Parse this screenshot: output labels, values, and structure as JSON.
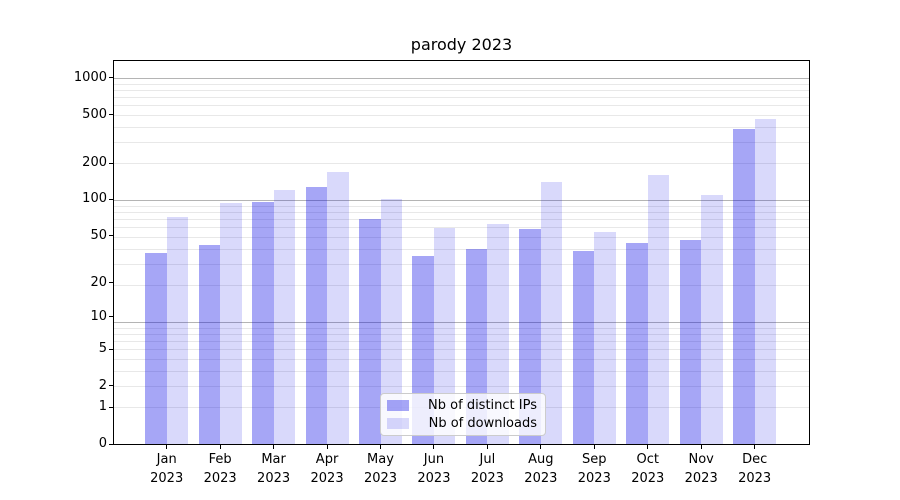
{
  "chart_data": {
    "type": "bar",
    "title": "parody 2023",
    "x_year": "2023",
    "categories": [
      "Jan",
      "Feb",
      "Mar",
      "Apr",
      "May",
      "Jun",
      "Jul",
      "Aug",
      "Sep",
      "Oct",
      "Nov",
      "Dec"
    ],
    "series": [
      {
        "name": "Nb of distinct IPs",
        "color": "rgba(0,0,230,0.35)",
        "values": [
          36,
          42,
          96,
          128,
          69,
          34,
          39,
          57,
          37,
          43,
          46,
          380
        ]
      },
      {
        "name": "Nb of downloads",
        "color": "rgba(0,0,230,0.15)",
        "values": [
          72,
          93,
          120,
          170,
          100,
          58,
          62,
          140,
          54,
          160,
          108,
          460
        ]
      }
    ],
    "yscale": "log1p",
    "y_ticks": [
      0,
      1,
      2,
      5,
      10,
      20,
      50,
      100,
      200,
      500,
      1000
    ],
    "ylim": [
      0,
      1370
    ],
    "grid": true,
    "legend_position": "lower center",
    "axis_color": "#000000",
    "major_grid_color": "#b4b4b4",
    "minor_grid_color": "#e8e8e8"
  }
}
